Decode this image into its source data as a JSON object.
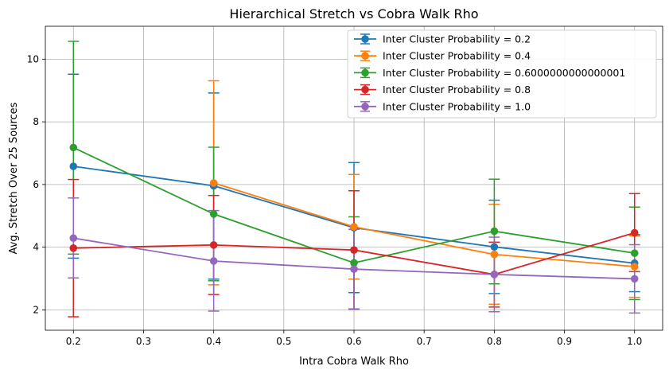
{
  "chart_data": {
    "type": "line",
    "title": "Hierarchical Stretch vs Cobra Walk Rho",
    "xlabel": "Intra Cobra Walk Rho",
    "ylabel": "Avg. Stretch Over 25 Sources",
    "xlim": [
      0.16,
      1.04
    ],
    "ylim": [
      1.35,
      11.05
    ],
    "xticks": [
      "0.2",
      "0.3",
      "0.4",
      "0.5",
      "0.6",
      "0.7",
      "0.8",
      "0.9",
      "1.0"
    ],
    "xtick_values": [
      0.2,
      0.3,
      0.4,
      0.5,
      0.6,
      0.7,
      0.8,
      0.9,
      1.0
    ],
    "yticks": [
      "2",
      "4",
      "6",
      "8",
      "10"
    ],
    "ytick_values": [
      2,
      4,
      6,
      8,
      10
    ],
    "grid": true,
    "legend_position": "top-right",
    "x": [
      0.2,
      0.4,
      0.6,
      0.8,
      1.0
    ],
    "series": [
      {
        "name": "Inter Cluster Probability = 0.2",
        "color": "#1f77b4",
        "values": [
          6.58,
          5.96,
          4.62,
          4.01,
          3.49
        ],
        "err_low": [
          3.65,
          2.98,
          2.55,
          2.52,
          2.58
        ],
        "err_high": [
          9.52,
          8.92,
          6.7,
          5.5,
          4.4
        ]
      },
      {
        "name": "Inter Cluster Probability = 0.4",
        "color": "#ff7f0e",
        "values": [
          null,
          6.05,
          4.65,
          3.77,
          3.38
        ],
        "err_low": [
          null,
          2.8,
          2.98,
          2.18,
          2.4
        ],
        "err_high": [
          null,
          9.31,
          6.32,
          5.37,
          4.36
        ]
      },
      {
        "name": "Inter Cluster Probability = 0.6000000000000001",
        "color": "#2ca02c",
        "values": [
          7.18,
          5.06,
          3.5,
          4.51,
          3.81
        ],
        "err_low": [
          3.78,
          2.93,
          2.03,
          2.83,
          2.33
        ],
        "err_high": [
          10.57,
          7.19,
          4.97,
          6.17,
          5.28
        ]
      },
      {
        "name": "Inter Cluster Probability = 0.8",
        "color": "#d62728",
        "values": [
          3.97,
          4.07,
          3.91,
          3.13,
          4.46
        ],
        "err_low": [
          1.78,
          2.49,
          2.02,
          2.09,
          3.22
        ],
        "err_high": [
          6.16,
          5.65,
          5.8,
          4.16,
          5.71
        ]
      },
      {
        "name": "Inter Cluster Probability = 1.0",
        "color": "#9467bd",
        "values": [
          4.29,
          3.56,
          3.3,
          3.13,
          2.99
        ],
        "err_low": [
          3.02,
          1.96,
          2.03,
          1.94,
          1.9
        ],
        "err_high": [
          5.57,
          5.17,
          4.57,
          4.32,
          4.08
        ]
      }
    ]
  }
}
